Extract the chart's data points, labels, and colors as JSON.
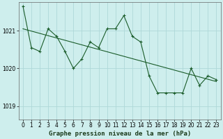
{
  "title": "Graphe pression niveau de la mer (hPa)",
  "background_color": "#ceeeed",
  "grid_color": "#aed8d8",
  "line_color": "#1a5c2a",
  "xlim": [
    -0.5,
    23.5
  ],
  "ylim": [
    1018.65,
    1021.75
  ],
  "yticks": [
    1019,
    1020,
    1021
  ],
  "xticks": [
    0,
    1,
    2,
    3,
    4,
    5,
    6,
    7,
    8,
    9,
    10,
    11,
    12,
    13,
    14,
    15,
    16,
    17,
    18,
    19,
    20,
    21,
    22,
    23
  ],
  "series1_x": [
    0,
    1,
    2,
    3,
    4,
    5,
    6,
    7,
    8,
    9,
    10,
    11,
    12,
    13,
    14,
    15,
    16,
    17,
    18,
    19,
    20,
    21,
    22,
    23
  ],
  "series1_y": [
    1021.65,
    1020.55,
    1020.45,
    1021.05,
    1020.85,
    1020.45,
    1020.0,
    1020.25,
    1020.7,
    1020.55,
    1021.05,
    1021.05,
    1021.4,
    1020.85,
    1020.7,
    1019.8,
    1019.35,
    1019.35,
    1019.35,
    1019.35,
    1020.0,
    1019.55,
    1019.8,
    1019.7
  ],
  "series2_x": [
    0,
    23
  ],
  "series2_y": [
    1021.05,
    1019.65
  ],
  "tick_fontsize": 5.5,
  "title_fontsize": 6.5,
  "marker": "+"
}
